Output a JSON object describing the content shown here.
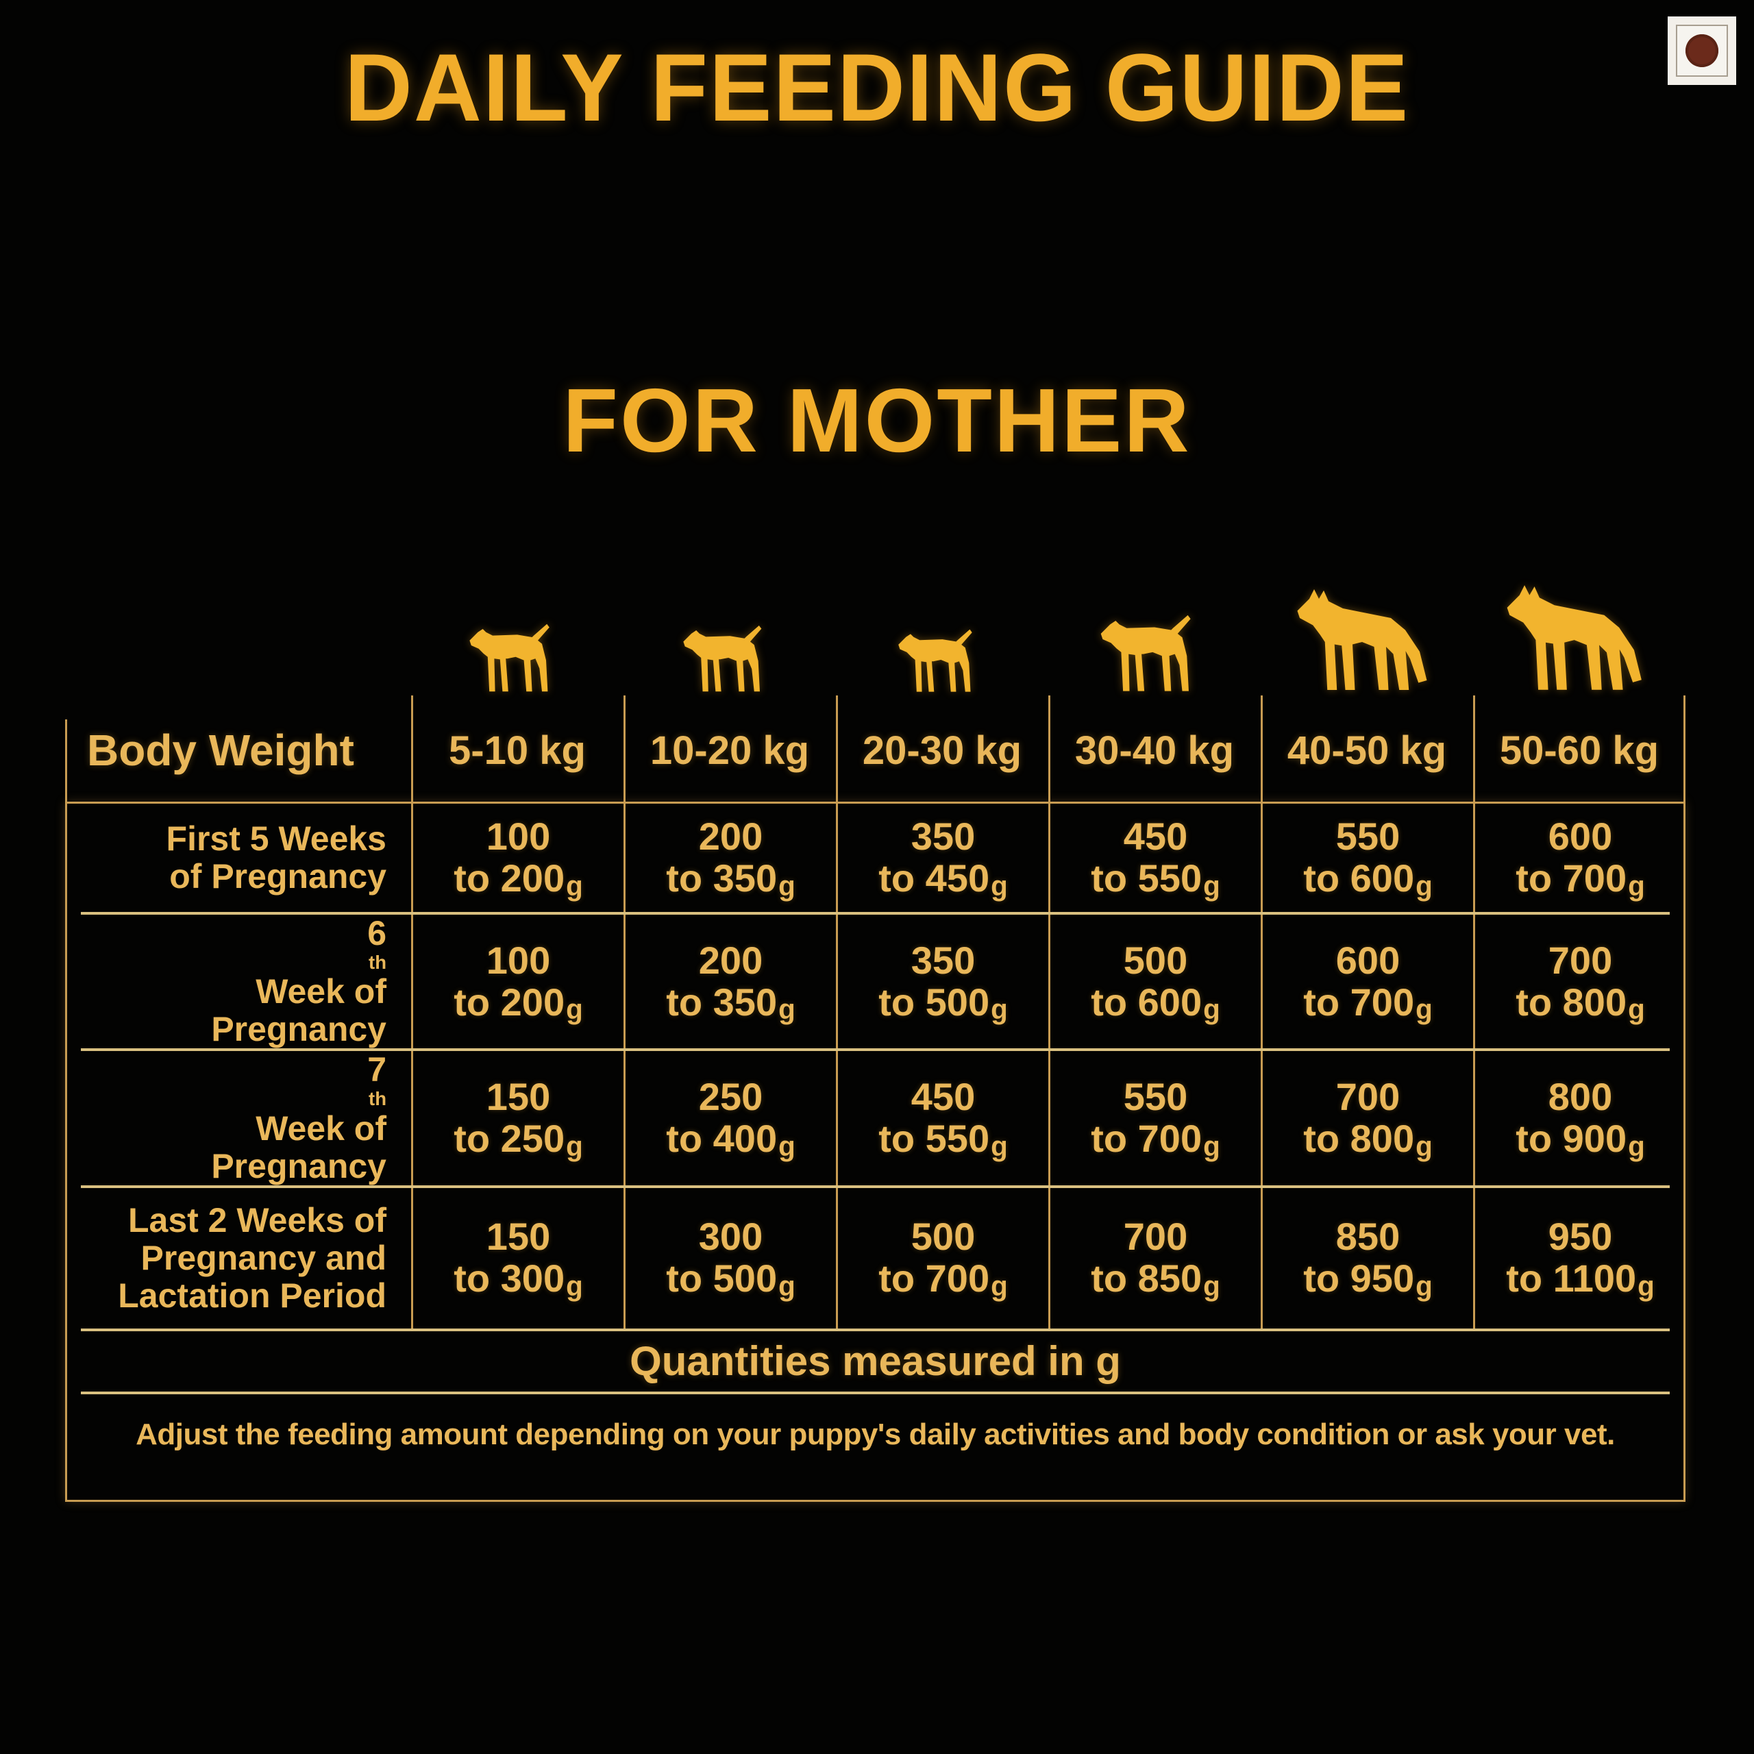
{
  "title": "DAILY FEEDING GUIDE",
  "subtitle": "FOR MOTHER",
  "badge": {
    "name": "non-veg-indicator"
  },
  "table": {
    "corner_label": "Body Weight",
    "columns": [
      "5-10 kg",
      "10-20 kg",
      "20-30 kg",
      "30-40 kg",
      "40-50 kg",
      "50-60 kg"
    ],
    "range_word": "to",
    "unit": "g",
    "rows": [
      {
        "label": "First 5 Weeks\nof Pregnancy",
        "cells": [
          [
            "100",
            "200"
          ],
          [
            "200",
            "350"
          ],
          [
            "350",
            "450"
          ],
          [
            "450",
            "550"
          ],
          [
            "550",
            "600"
          ],
          [
            "600",
            "700"
          ]
        ]
      },
      {
        "label": "6th Week of\nPregnancy",
        "cells": [
          [
            "100",
            "200"
          ],
          [
            "200",
            "350"
          ],
          [
            "350",
            "500"
          ],
          [
            "500",
            "600"
          ],
          [
            "600",
            "700"
          ],
          [
            "700",
            "800"
          ]
        ]
      },
      {
        "label": "7th Week of\nPregnancy",
        "cells": [
          [
            "150",
            "250"
          ],
          [
            "250",
            "400"
          ],
          [
            "450",
            "550"
          ],
          [
            "550",
            "700"
          ],
          [
            "700",
            "800"
          ],
          [
            "800",
            "900"
          ]
        ]
      },
      {
        "label": "Last 2 Weeks of\nPregnancy and\nLactation Period",
        "cells": [
          [
            "150",
            "300"
          ],
          [
            "300",
            "500"
          ],
          [
            "500",
            "700"
          ],
          [
            "700",
            "850"
          ],
          [
            "850",
            "950"
          ],
          [
            "950",
            "1100"
          ]
        ]
      }
    ],
    "units_note": "Quantities measured in g",
    "disclaimer": "Adjust the feeding amount depending on your puppy's daily activities and body condition or ask your vet."
  },
  "dog_icons": [
    {
      "name": "small-dog-icon",
      "variant": "tail-up",
      "height": 108
    },
    {
      "name": "medium-dog-icon",
      "variant": "tail-up",
      "height": 106
    },
    {
      "name": "collie-dog-icon",
      "variant": "tail-up",
      "height": 100
    },
    {
      "name": "setter-dog-icon",
      "variant": "tail-up",
      "height": 122
    },
    {
      "name": "shepherd-dog-icon",
      "variant": "tail-down",
      "height": 158
    },
    {
      "name": "retriever-dog-icon",
      "variant": "tail-down",
      "height": 164
    }
  ],
  "colors": {
    "background": "#030302",
    "accent_gold": "#F1AD2B",
    "text_gold": "#E9B75A",
    "dog_gold": "#F2B42E",
    "line_gold": "#C89C52",
    "separator_tan": "#D9C080",
    "nonveg_brown": "#6B2A1B"
  }
}
